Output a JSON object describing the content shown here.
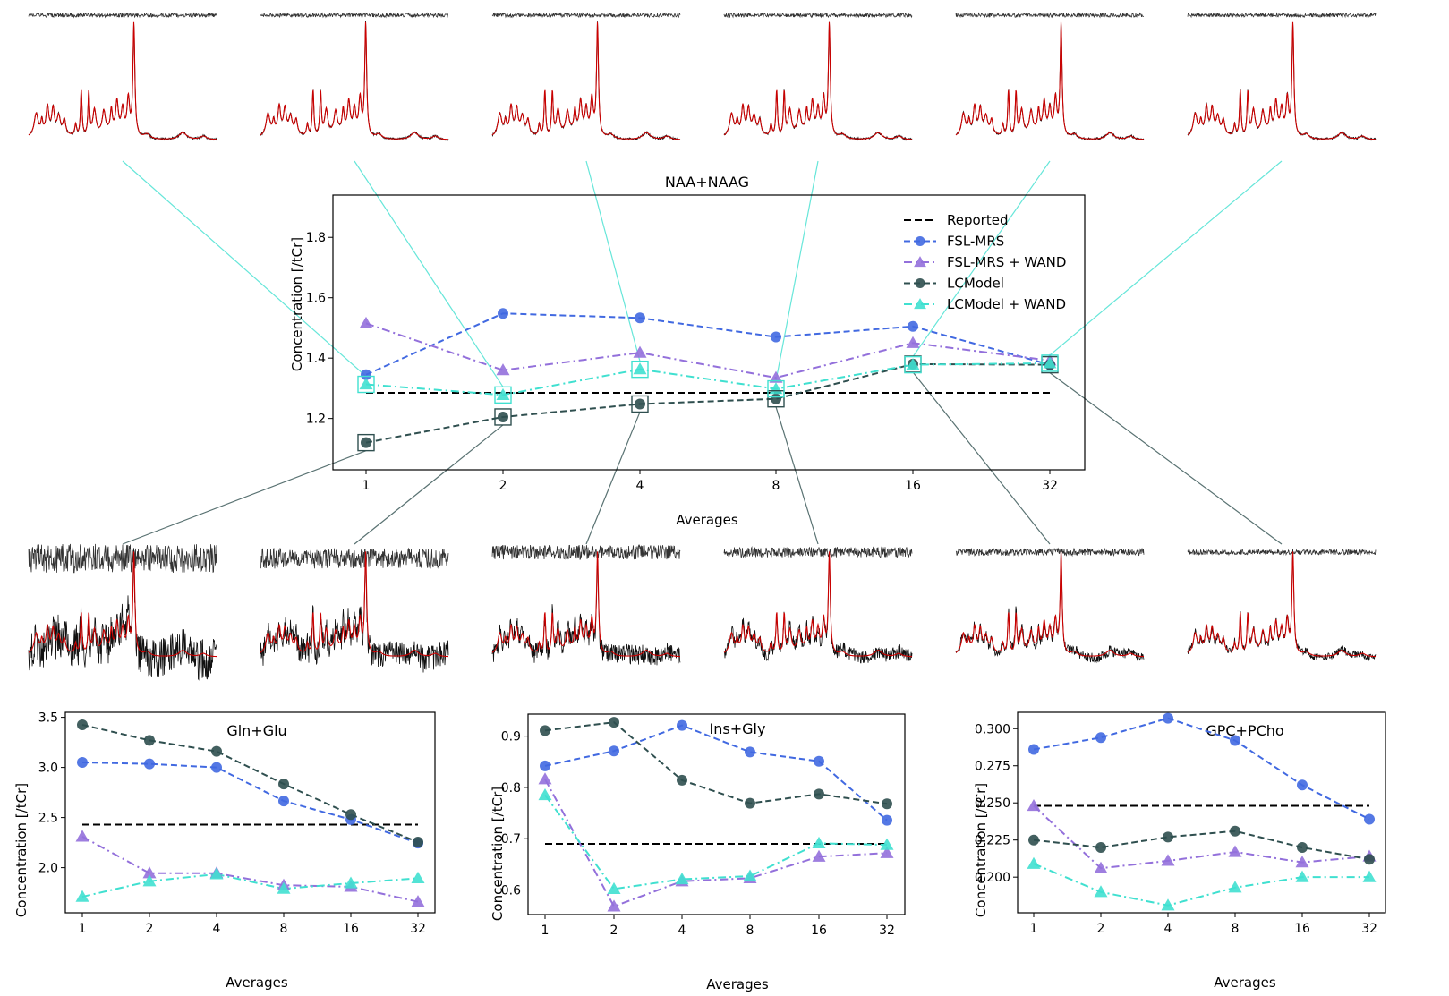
{
  "colors": {
    "reported": "#000000",
    "fsl": "#4169e1",
    "fsl_wand": "#9370db",
    "lcm": "#2f4f4f",
    "lcm_wand": "#40e0d0",
    "spectrum_fit": "#cc0000",
    "spectrum_data": "#111111",
    "residual": "#333333"
  },
  "chart_data": [
    {
      "type": "line",
      "id": "naa",
      "title": "NAA+NAAG",
      "xlabel": "Averages",
      "ylabel": "Concentration [/tCr]",
      "categories": [
        "1",
        "2",
        "4",
        "8",
        "16",
        "32"
      ],
      "ylim": [
        1.03,
        1.94
      ],
      "yticks": [
        "1.2",
        "1.4",
        "1.6",
        "1.8"
      ],
      "reported": 1.285,
      "series": [
        {
          "name": "FSL-MRS",
          "key": "fsl",
          "marker": "circle",
          "dash": "dashed",
          "values": [
            1.345,
            1.548,
            1.533,
            1.47,
            1.505,
            1.378
          ]
        },
        {
          "name": "FSL-MRS + WAND",
          "key": "fsl_wand",
          "marker": "triangle",
          "dash": "dashdot",
          "values": [
            1.515,
            1.36,
            1.418,
            1.335,
            1.45,
            1.392
          ]
        },
        {
          "name": "LCModel",
          "key": "lcm",
          "marker": "circle",
          "dash": "dashed",
          "values": [
            1.12,
            1.205,
            1.248,
            1.265,
            1.38,
            1.378
          ]
        },
        {
          "name": "LCModel + WAND",
          "key": "lcm_wand",
          "marker": "triangle",
          "dash": "dashdot",
          "values": [
            1.313,
            1.278,
            1.363,
            1.298,
            1.378,
            1.383
          ]
        }
      ],
      "legend": {
        "position": "top-right",
        "reported_label": "Reported"
      }
    },
    {
      "type": "line",
      "id": "gln",
      "title": "Gln+Glu",
      "xlabel": "Averages",
      "ylabel": "Concentration [/tCr]",
      "categories": [
        "1",
        "2",
        "4",
        "8",
        "16",
        "32"
      ],
      "ylim": [
        1.55,
        3.55
      ],
      "yticks": [
        "2.0",
        "2.5",
        "3.0",
        "3.5"
      ],
      "reported": 2.43,
      "series": [
        {
          "name": "FSL-MRS",
          "key": "fsl",
          "marker": "circle",
          "dash": "dashed",
          "values": [
            3.05,
            3.035,
            3.0,
            2.665,
            2.48,
            2.245
          ]
        },
        {
          "name": "FSL-MRS + WAND",
          "key": "fsl_wand",
          "marker": "triangle",
          "dash": "dashdot",
          "values": [
            2.31,
            1.945,
            1.945,
            1.825,
            1.81,
            1.66
          ]
        },
        {
          "name": "LCModel",
          "key": "lcm",
          "marker": "circle",
          "dash": "dashed",
          "values": [
            3.425,
            3.27,
            3.16,
            2.835,
            2.53,
            2.255
          ]
        },
        {
          "name": "LCModel + WAND",
          "key": "lcm_wand",
          "marker": "triangle",
          "dash": "dashdot",
          "values": [
            1.71,
            1.865,
            1.935,
            1.79,
            1.845,
            1.895
          ]
        }
      ]
    },
    {
      "type": "line",
      "id": "ins",
      "title": "Ins+Gly",
      "xlabel": "Averages",
      "ylabel": "Concentration [/tCr]",
      "categories": [
        "1",
        "2",
        "4",
        "8",
        "16",
        "32"
      ],
      "ylim": [
        0.552,
        0.943
      ],
      "yticks": [
        "0.6",
        "0.7",
        "0.8",
        "0.9"
      ],
      "reported": 0.69,
      "series": [
        {
          "name": "FSL-MRS",
          "key": "fsl",
          "marker": "circle",
          "dash": "dashed",
          "values": [
            0.842,
            0.871,
            0.921,
            0.869,
            0.851,
            0.736
          ]
        },
        {
          "name": "FSL-MRS + WAND",
          "key": "fsl_wand",
          "marker": "triangle",
          "dash": "dashdot",
          "values": [
            0.816,
            0.568,
            0.617,
            0.623,
            0.665,
            0.672
          ]
        },
        {
          "name": "LCModel",
          "key": "lcm",
          "marker": "circle",
          "dash": "dashed",
          "values": [
            0.911,
            0.927,
            0.814,
            0.769,
            0.787,
            0.768
          ]
        },
        {
          "name": "LCModel + WAND",
          "key": "lcm_wand",
          "marker": "triangle",
          "dash": "dashdot",
          "values": [
            0.785,
            0.602,
            0.621,
            0.627,
            0.691,
            0.688
          ]
        }
      ]
    },
    {
      "type": "line",
      "id": "gpc",
      "title": "GPC+PCho",
      "xlabel": "Averages",
      "ylabel": "Concentration [/tCr]",
      "categories": [
        "1",
        "2",
        "4",
        "8",
        "16",
        "32"
      ],
      "ylim": [
        0.176,
        0.311
      ],
      "yticks": [
        "0.200",
        "0.225",
        "0.250",
        "0.275",
        "0.300"
      ],
      "reported": 0.248,
      "series": [
        {
          "name": "FSL-MRS",
          "key": "fsl",
          "marker": "circle",
          "dash": "dashed",
          "values": [
            0.286,
            0.294,
            0.307,
            0.292,
            0.262,
            0.239
          ]
        },
        {
          "name": "FSL-MRS + WAND",
          "key": "fsl_wand",
          "marker": "triangle",
          "dash": "dashdot",
          "values": [
            0.248,
            0.206,
            0.211,
            0.217,
            0.21,
            0.214
          ]
        },
        {
          "name": "LCModel",
          "key": "lcm",
          "marker": "circle",
          "dash": "dashed",
          "values": [
            0.225,
            0.22,
            0.227,
            0.231,
            0.22,
            0.212
          ]
        },
        {
          "name": "LCModel + WAND",
          "key": "lcm_wand",
          "marker": "triangle",
          "dash": "dashdot",
          "values": [
            0.209,
            0.19,
            0.181,
            0.193,
            0.2,
            0.2
          ]
        }
      ]
    }
  ],
  "spectra": {
    "top_row": {
      "fit_source": "LCModel + WAND",
      "averages": [
        "1",
        "2",
        "4",
        "8",
        "16",
        "32"
      ]
    },
    "bottom_row": {
      "fit_source": "LCModel",
      "averages": [
        "1",
        "2",
        "4",
        "8",
        "16",
        "32"
      ]
    }
  }
}
